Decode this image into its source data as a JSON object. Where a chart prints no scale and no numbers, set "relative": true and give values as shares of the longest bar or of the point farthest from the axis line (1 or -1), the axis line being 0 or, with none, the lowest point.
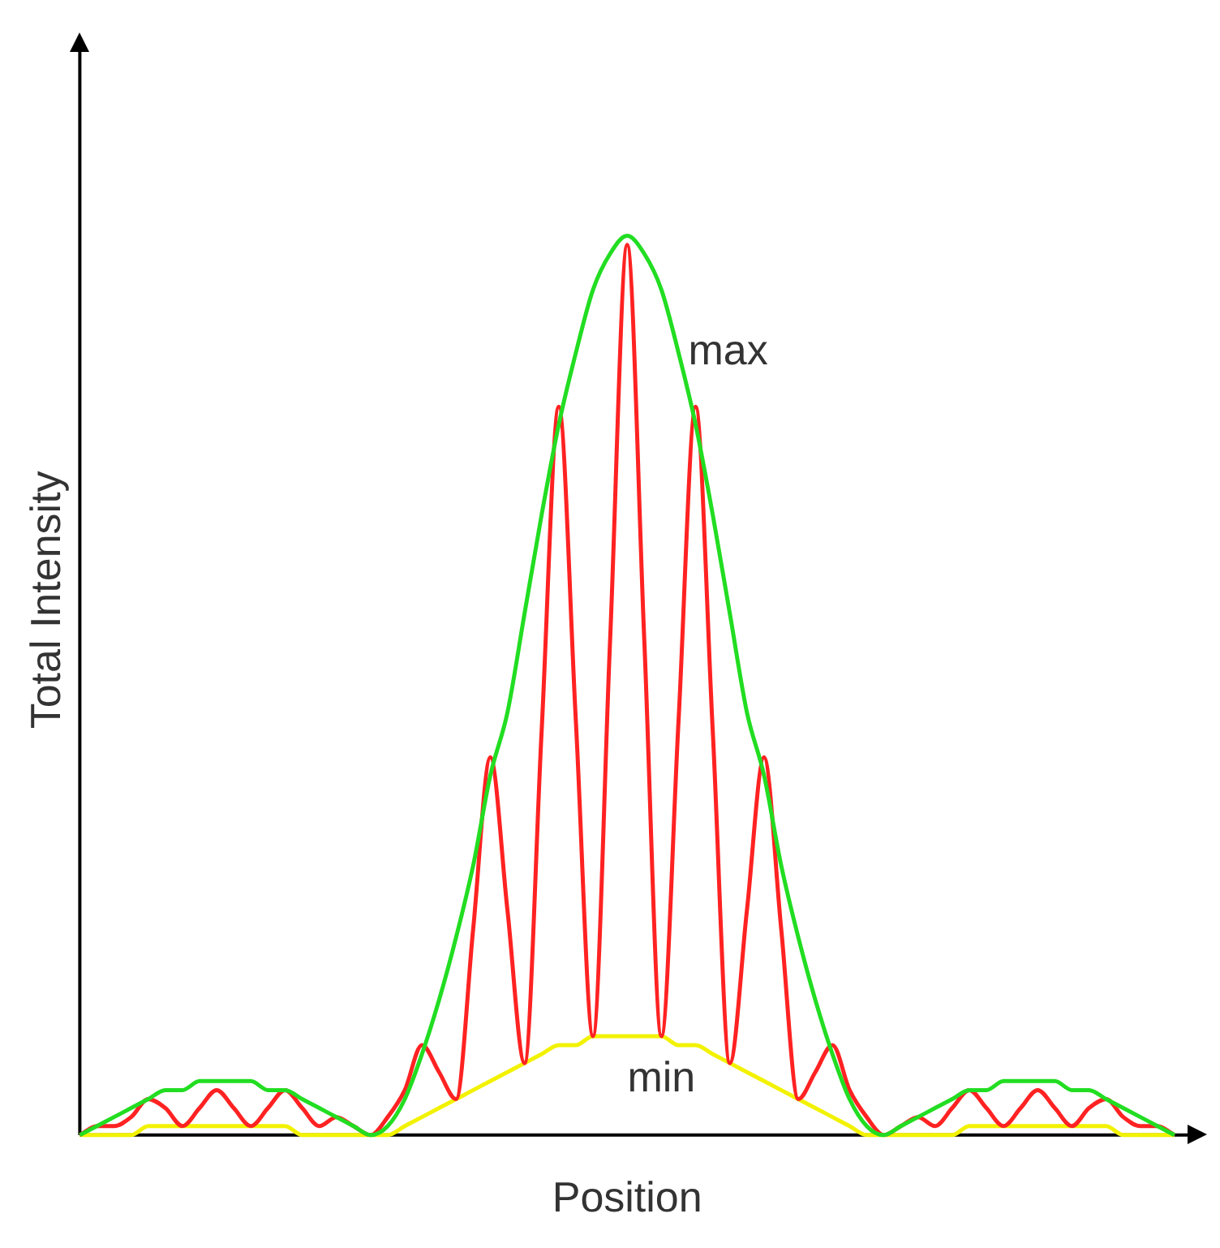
{
  "chart_data": {
    "type": "line",
    "relative": true,
    "xlabel": "Position",
    "ylabel": "Total Intensity",
    "legend": false,
    "grid": false,
    "marker": "none",
    "line_style": "solid",
    "categories": [
      null,
      null,
      null,
      null,
      null,
      null,
      null,
      null,
      null,
      null,
      null,
      null,
      null,
      null,
      null,
      null,
      null,
      null,
      null,
      null,
      null,
      null,
      null,
      null,
      null,
      null,
      null,
      null,
      null,
      null,
      null,
      null,
      null,
      null,
      null,
      null,
      null,
      null,
      null,
      null,
      null,
      null,
      null,
      null,
      null,
      null,
      null,
      null,
      null,
      null,
      null,
      null,
      null,
      null,
      null,
      null,
      null,
      null,
      null,
      null,
      null,
      null,
      null,
      null,
      null
    ],
    "series": [
      {
        "name": "max",
        "color": "#22dd22",
        "values": [
          0,
          0.01,
          0.02,
          0.03,
          0.04,
          0.05,
          0.05,
          0.06,
          0.06,
          0.06,
          0.06,
          0.05,
          0.05,
          0.04,
          0.03,
          0.02,
          0.01,
          0,
          0.01,
          0.04,
          0.09,
          0.15,
          0.22,
          0.3,
          0.4,
          0.47,
          0.58,
          0.69,
          0.79,
          0.87,
          0.94,
          0.98,
          1,
          0.98,
          0.94,
          0.87,
          0.79,
          0.69,
          0.58,
          0.47,
          0.4,
          0.3,
          0.22,
          0.15,
          0.09,
          0.04,
          0.01,
          0,
          0.01,
          0.02,
          0.03,
          0.04,
          0.05,
          0.05,
          0.06,
          0.06,
          0.06,
          0.06,
          0.05,
          0.05,
          0.04,
          0.03,
          0.02,
          0.01,
          0
        ]
      },
      {
        "color": "#ff2222",
        "values": [
          0,
          0.01,
          0.01,
          0.02,
          0.04,
          0.03,
          0.01,
          0.03,
          0.05,
          0.03,
          0.01,
          0.03,
          0.05,
          0.03,
          0.01,
          0.02,
          0.01,
          0,
          0.02,
          0.05,
          0.1,
          0.07,
          0.04,
          0.23,
          0.42,
          0.25,
          0.08,
          0.45,
          0.81,
          0.46,
          0.11,
          0.55,
          0.99,
          0.55,
          0.11,
          0.46,
          0.81,
          0.45,
          0.08,
          0.25,
          0.42,
          0.23,
          0.04,
          0.07,
          0.1,
          0.05,
          0.02,
          0,
          0.01,
          0.02,
          0.01,
          0.03,
          0.05,
          0.03,
          0.01,
          0.03,
          0.05,
          0.03,
          0.01,
          0.03,
          0.04,
          0.02,
          0.01,
          0.01,
          0
        ]
      },
      {
        "name": "min",
        "color": "#f2f200",
        "values": [
          0,
          0,
          0,
          0,
          0.01,
          0.01,
          0.01,
          0.01,
          0.01,
          0.01,
          0.01,
          0.01,
          0.01,
          0,
          0,
          0,
          0,
          0,
          0,
          0.01,
          0.02,
          0.03,
          0.04,
          0.05,
          0.06,
          0.07,
          0.08,
          0.09,
          0.1,
          0.1,
          0.11,
          0.11,
          0.11,
          0.11,
          0.11,
          0.1,
          0.1,
          0.09,
          0.08,
          0.07,
          0.06,
          0.05,
          0.04,
          0.03,
          0.02,
          0.01,
          0,
          0,
          0,
          0,
          0,
          0,
          0.01,
          0.01,
          0.01,
          0.01,
          0.01,
          0.01,
          0.01,
          0.01,
          0.01,
          0,
          0,
          0,
          0
        ]
      }
    ]
  }
}
